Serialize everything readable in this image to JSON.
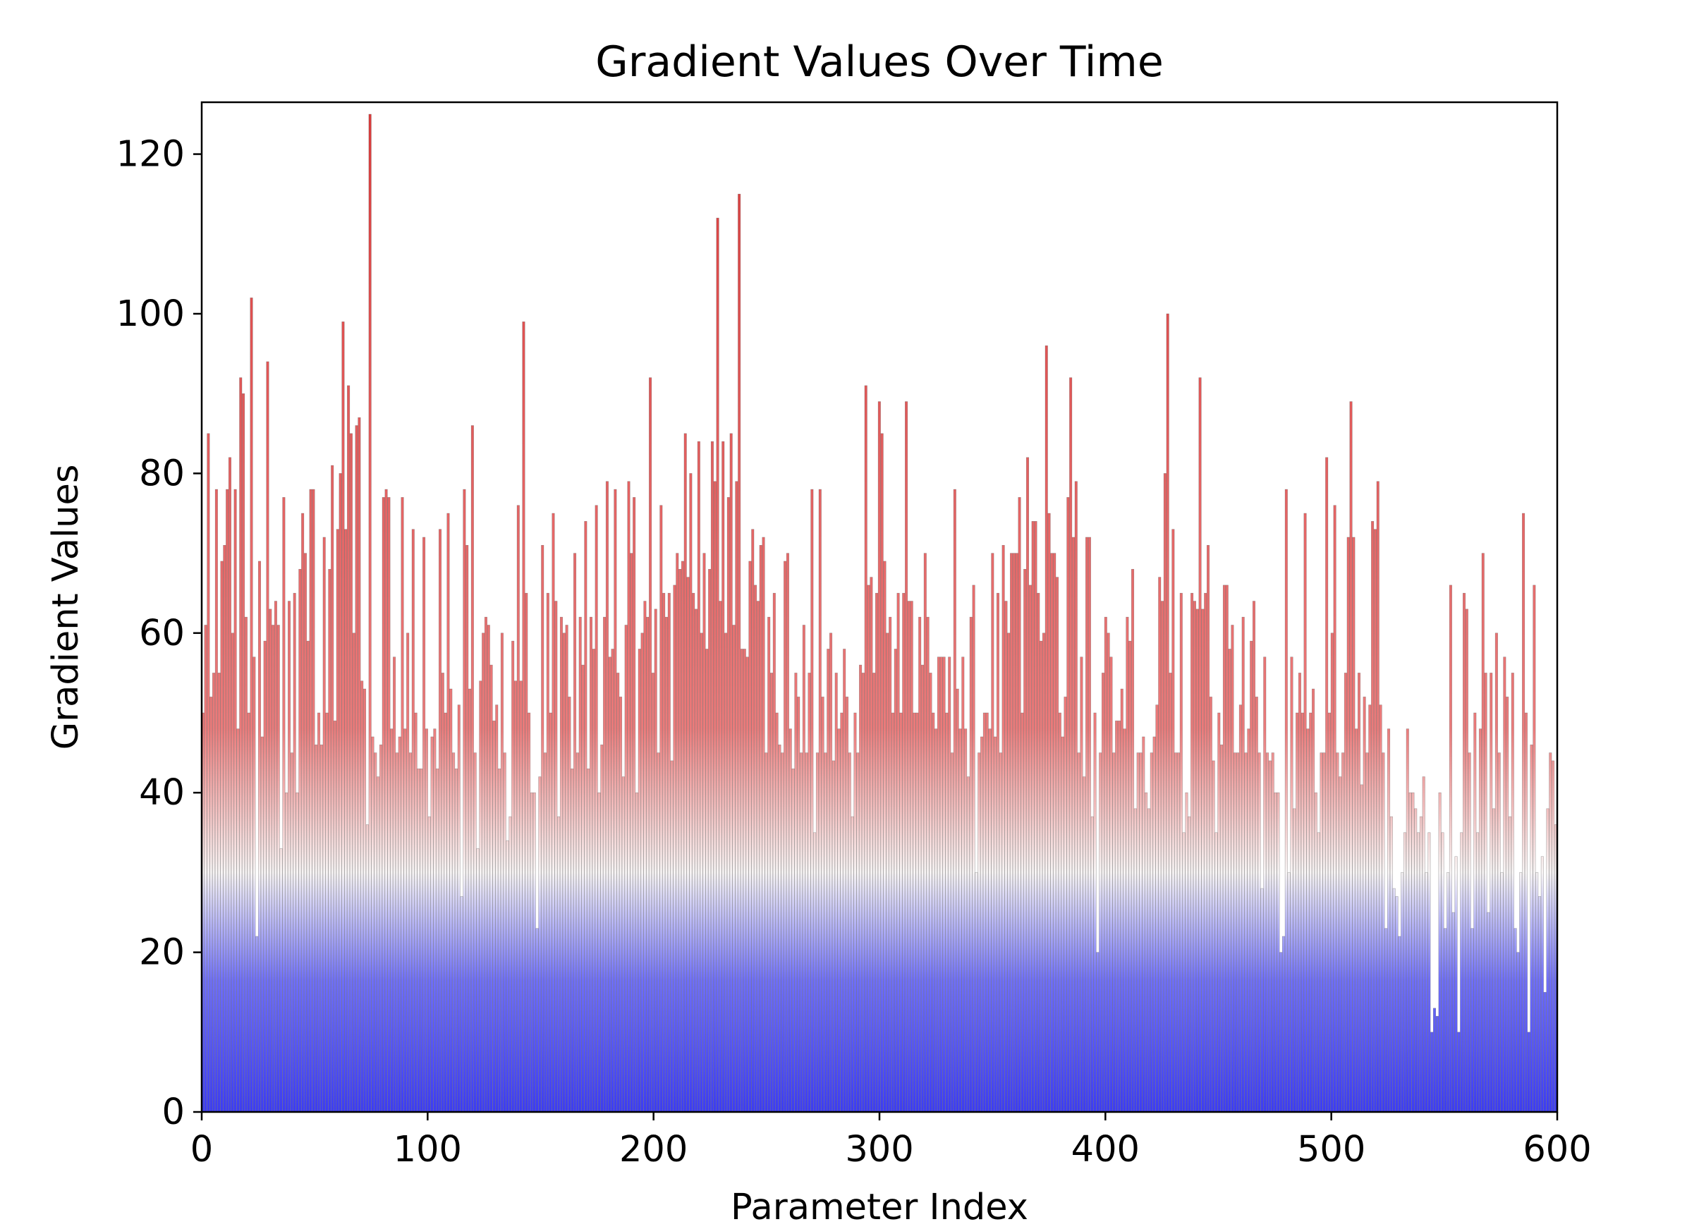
{
  "chart_data": {
    "type": "bar",
    "title": "Gradient Values Over Time",
    "xlabel": "Parameter Index",
    "ylabel": "Gradient Values",
    "xlim": [
      0,
      600
    ],
    "ylim": [
      0,
      126.5
    ],
    "x_ticks": [
      "0",
      "100",
      "200",
      "300",
      "400",
      "500",
      "600"
    ],
    "y_ticks": [
      "0",
      "20",
      "40",
      "60",
      "80",
      "100",
      "120"
    ],
    "grid": false,
    "legend": "none",
    "color_gradient": {
      "low": "#3b3bf5",
      "mid": "#f7f4f4",
      "high": "#d93a3a",
      "mid_value": 30,
      "edge": "#555555"
    },
    "series": [
      {
        "values": [
          50.0,
          61.0,
          85.0,
          52.0,
          55.0,
          78.0,
          55.0,
          69.0,
          71.0,
          78.0,
          82.0,
          60.0,
          78.0,
          48.0,
          92.0,
          90.0,
          62.0,
          50.0,
          102.0,
          57.0,
          22.0,
          69.0,
          47.0,
          59.0,
          94.0,
          63.0,
          61.0,
          64.0,
          61.0,
          33.0,
          77.0,
          40.0,
          64.0,
          45.0,
          65.0,
          40.0,
          68.0,
          75.0,
          70.0,
          59.0,
          78.0,
          78.0,
          46.0,
          50.0,
          46.0,
          72.0,
          50.0,
          68.0,
          81.0,
          49.0,
          73.0,
          80.0,
          99.0,
          73.0,
          91.0,
          85.0,
          60.0,
          86.0,
          87.0,
          54.0,
          53.0,
          36.0,
          125.0,
          47.0,
          45.0,
          42.0,
          46.0,
          77.0,
          78.0,
          77.0,
          48.0,
          57.0,
          45.0,
          47.0,
          77.0,
          48.0,
          60.0,
          45.0,
          73.0,
          50.0,
          43.0,
          43.0,
          72.0,
          48.0,
          37.0,
          47.0,
          48.0,
          43.0,
          73.0,
          55.0,
          50.0,
          75.0,
          53.0,
          45.0,
          43.0,
          51.0,
          27.0,
          78.0,
          71.0,
          53.0,
          86.0,
          45.0,
          33.0,
          54.0,
          60.0,
          62.0,
          61.0,
          56.0,
          49.0,
          51.0,
          43.0,
          60.0,
          45.0,
          34.0,
          37.0,
          59.0,
          54.0,
          76.0,
          54.0,
          99.0,
          65.0,
          50.0,
          40.0,
          40.0,
          23.0,
          42.0,
          71.0,
          45.0,
          65.0,
          50.0,
          75.0,
          64.0,
          37.0,
          62.0,
          60.0,
          61.0,
          52.0,
          43.0,
          70.0,
          45.0,
          62.0,
          56.0,
          74.0,
          43.0,
          62.0,
          58.0,
          76.0,
          40.0,
          46.0,
          62.0,
          79.0,
          57.0,
          58.0,
          78.0,
          55.0,
          52.0,
          42.0,
          61.0,
          79.0,
          70.0,
          77.0,
          40.0,
          58.0,
          60.0,
          64.0,
          62.0,
          92.0,
          55.0,
          63.0,
          45.0,
          76.0,
          65.0,
          62.0,
          65.0,
          44.0,
          66.0,
          70.0,
          68.0,
          69.0,
          85.0,
          67.0,
          80.0,
          65.0,
          63.0,
          84.0,
          60.0,
          70.0,
          58.0,
          68.0,
          84.0,
          79.0,
          112.0,
          64.0,
          84.0,
          60.0,
          77.0,
          85.0,
          61.0,
          79.0,
          115.0,
          58.0,
          58.0,
          57.0,
          69.0,
          73.0,
          66.0,
          64.0,
          71.0,
          72.0,
          45.0,
          62.0,
          55.0,
          65.0,
          50.0,
          46.0,
          45.0,
          69.0,
          70.0,
          48.0,
          43.0,
          55.0,
          52.0,
          45.0,
          61.0,
          45.0,
          55.0,
          78.0,
          35.0,
          45.0,
          78.0,
          52.0,
          45.0,
          58.0,
          60.0,
          44.0,
          55.0,
          48.0,
          50.0,
          58.0,
          52.0,
          45.0,
          37.0,
          50.0,
          45.0,
          56.0,
          55.0,
          91.0,
          66.0,
          67.0,
          55.0,
          65.0,
          89.0,
          85.0,
          69.0,
          60.0,
          62.0,
          50.0,
          58.0,
          65.0,
          50.0,
          65.0,
          89.0,
          64.0,
          64.0,
          50.0,
          50.0,
          62.0,
          56.0,
          70.0,
          62.0,
          55.0,
          50.0,
          48.0,
          57.0,
          57.0,
          57.0,
          50.0,
          57.0,
          45.0,
          78.0,
          53.0,
          48.0,
          57.0,
          48.0,
          42.0,
          62.0,
          66.0,
          30.0,
          45.0,
          47.0,
          50.0,
          50.0,
          48.0,
          70.0,
          47.0,
          65.0,
          45.0,
          71.0,
          64.0,
          60.0,
          70.0,
          70.0,
          70.0,
          77.0,
          50.0,
          68.0,
          82.0,
          66.0,
          74.0,
          74.0,
          65.0,
          59.0,
          60.0,
          96.0,
          75.0,
          70.0,
          70.0,
          67.0,
          50.0,
          47.0,
          52.0,
          77.0,
          92.0,
          72.0,
          79.0,
          45.0,
          57.0,
          42.0,
          72.0,
          72.0,
          37.0,
          50.0,
          20.0,
          45.0,
          55.0,
          62.0,
          60.0,
          57.0,
          45.0,
          49.0,
          49.0,
          53.0,
          48.0,
          62.0,
          59.0,
          68.0,
          38.0,
          45.0,
          45.0,
          47.0,
          40.0,
          38.0,
          45.0,
          47.0,
          51.0,
          67.0,
          64.0,
          80.0,
          100.0,
          55.0,
          73.0,
          45.0,
          45.0,
          65.0,
          35.0,
          40.0,
          37.0,
          65.0,
          64.0,
          63.0,
          92.0,
          63.0,
          65.0,
          71.0,
          52.0,
          44.0,
          35.0,
          50.0,
          46.0,
          66.0,
          66.0,
          58.0,
          61.0,
          45.0,
          45.0,
          51.0,
          62.0,
          45.0,
          48.0,
          59.0,
          64.0,
          52.0,
          45.0,
          28.0,
          57.0,
          45.0,
          44.0,
          45.0,
          40.0,
          40.0,
          20.0,
          22.0,
          78.0,
          30.0,
          57.0,
          38.0,
          50.0,
          55.0,
          50.0,
          75.0,
          48.0,
          50.0,
          53.0,
          40.0,
          35.0,
          45.0,
          45.0,
          82.0,
          50.0,
          60.0,
          76.0,
          45.0,
          42.0,
          45.0,
          55.0,
          72.0,
          89.0,
          72.0,
          48.0,
          55.0,
          41.0,
          52.0,
          45.0,
          51.0,
          74.0,
          73.0,
          79.0,
          51.0,
          45.0,
          23.0,
          48.0,
          37.0,
          28.0,
          27.0,
          22.0,
          30.0,
          35.0,
          48.0,
          40.0,
          40.0,
          38.0,
          35.0,
          37.0,
          42.0,
          30.0,
          35.0,
          10.0,
          13.0,
          12.0,
          40.0,
          35.0,
          23.0,
          30.0,
          66.0,
          25.0,
          32.0,
          10.0,
          35.0,
          65.0,
          63.0,
          45.0,
          23.0,
          50.0,
          35.0,
          48.0,
          70.0,
          55.0,
          25.0,
          55.0,
          38.0,
          60.0,
          45.0,
          30.0,
          57.0,
          52.0,
          37.0,
          55.0,
          23.0,
          20.0,
          30.0,
          75.0,
          50.0,
          10.0,
          46.0,
          66.0,
          30.0,
          27.0,
          32.0,
          15.0,
          38.0,
          45.0,
          44.0,
          36.0
        ]
      }
    ]
  }
}
